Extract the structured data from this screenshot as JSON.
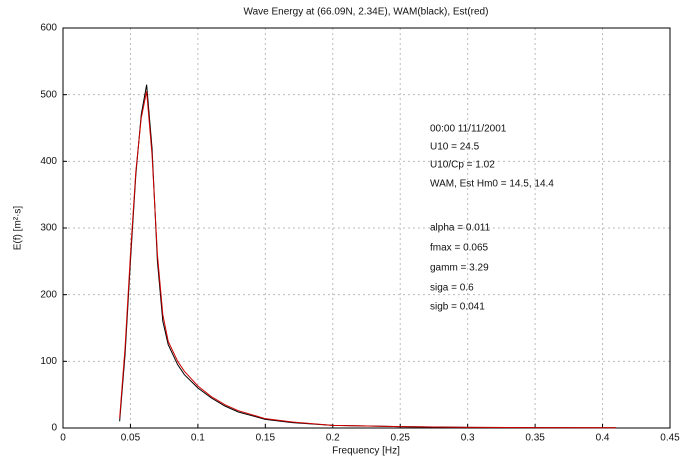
{
  "chart_data": {
    "type": "line",
    "title": "Wave Energy at (66.09N, 2.34E), WAM(black), Est(red)",
    "x_label": "Frequency [Hz]",
    "y_label": "E(f) [m²·s]",
    "x": [
      0.042,
      0.046,
      0.05,
      0.054,
      0.058,
      0.062,
      0.066,
      0.07,
      0.074,
      0.078,
      0.085,
      0.09,
      0.1,
      0.11,
      0.12,
      0.13,
      0.15,
      0.17,
      0.2,
      0.25,
      0.3,
      0.35,
      0.41
    ],
    "series": [
      {
        "name": "WAM",
        "color": "#000000",
        "values": [
          10,
          110,
          250,
          380,
          470,
          515,
          420,
          250,
          160,
          125,
          95,
          80,
          60,
          45,
          33,
          24,
          13,
          8,
          4,
          2,
          1,
          0.5,
          0.3
        ]
      },
      {
        "name": "Est",
        "color": "#cc0000",
        "values": [
          15,
          120,
          260,
          385,
          465,
          505,
          410,
          260,
          170,
          130,
          100,
          85,
          63,
          47,
          35,
          26,
          14,
          9,
          4,
          2,
          1,
          0.5,
          0.3
        ]
      }
    ],
    "xlim": [
      0,
      0.45
    ],
    "xticks": [
      0,
      0.05,
      0.1,
      0.15,
      0.2,
      0.25,
      0.3,
      0.35,
      0.4,
      0.45
    ],
    "ylim": [
      0,
      600
    ],
    "yticks": [
      0,
      100,
      200,
      300,
      400,
      500,
      600
    ],
    "grid": true,
    "annotations": [
      "00:00 11/11/2001",
      "U10 = 24.5",
      "U10/Cp = 1.02",
      "WAM, Est Hm0 = 14.5, 14.4",
      "alpha = 0.011",
      "fmax = 0.065",
      "gamm = 3.29",
      "siga = 0.6",
      "sigb = 0.041"
    ]
  }
}
